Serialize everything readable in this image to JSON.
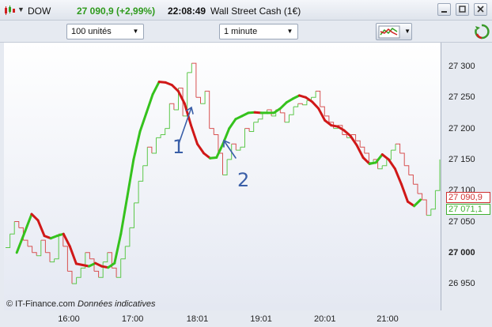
{
  "titlebar": {
    "symbol": "DOW",
    "price_change": "27 090,9 (+2,99%)",
    "time": "22:08:49",
    "instrument": "Wall Street Cash (1€)"
  },
  "toolbar": {
    "quantity": "100 unités",
    "interval": "1 minute"
  },
  "chart_data": {
    "type": "line",
    "title": "",
    "xlabel": "",
    "ylabel": "",
    "ylim": [
      26920,
      27330
    ],
    "y_ticks": [
      "27 300",
      "27 250",
      "27 200",
      "27 150",
      "27 100",
      "27 050",
      "27 000",
      "26 950"
    ],
    "x_ticks": [
      "16:00",
      "17:00",
      "18:01",
      "19:01",
      "20:01",
      "21:00"
    ],
    "price_labels": {
      "bid": "27 090,9",
      "ask": "27 071,1"
    },
    "up_color": "#35c21d",
    "down_color": "#d01818",
    "smooth_line": {
      "name": "",
      "points": [
        [
          "15:11",
          27000
        ],
        [
          "15:19",
          27035
        ],
        [
          "15:25",
          27062
        ],
        [
          "15:31",
          27052
        ],
        [
          "15:37",
          27027
        ],
        [
          "15:43",
          27023
        ],
        [
          "15:49",
          27027
        ],
        [
          "15:55",
          27030
        ],
        [
          "16:01",
          27010
        ],
        [
          "16:07",
          26982
        ],
        [
          "16:13",
          26980
        ],
        [
          "16:19",
          26978
        ],
        [
          "16:25",
          26983
        ],
        [
          "16:31",
          26978
        ],
        [
          "16:37",
          26976
        ],
        [
          "16:43",
          26983
        ],
        [
          "16:49",
          27030
        ],
        [
          "16:55",
          27090
        ],
        [
          "17:01",
          27150
        ],
        [
          "17:07",
          27195
        ],
        [
          "17:13",
          27225
        ],
        [
          "17:19",
          27255
        ],
        [
          "17:25",
          27275
        ],
        [
          "17:31",
          27274
        ],
        [
          "17:37",
          27270
        ],
        [
          "17:43",
          27260
        ],
        [
          "17:49",
          27240
        ],
        [
          "17:55",
          27205
        ],
        [
          "18:01",
          27175
        ],
        [
          "18:07",
          27160
        ],
        [
          "18:13",
          27152
        ],
        [
          "18:19",
          27153
        ],
        [
          "18:25",
          27175
        ],
        [
          "18:31",
          27200
        ],
        [
          "18:37",
          27215
        ],
        [
          "18:43",
          27220
        ],
        [
          "18:49",
          27225
        ],
        [
          "18:55",
          27226
        ],
        [
          "19:01",
          27225
        ],
        [
          "19:07",
          27225
        ],
        [
          "19:13",
          27225
        ],
        [
          "19:19",
          27232
        ],
        [
          "19:25",
          27242
        ],
        [
          "19:31",
          27248
        ],
        [
          "19:37",
          27253
        ],
        [
          "19:43",
          27250
        ],
        [
          "19:49",
          27243
        ],
        [
          "19:55",
          27232
        ],
        [
          "20:01",
          27213
        ],
        [
          "20:07",
          27205
        ],
        [
          "20:13",
          27203
        ],
        [
          "20:19",
          27197
        ],
        [
          "20:25",
          27188
        ],
        [
          "20:31",
          27173
        ],
        [
          "20:37",
          27153
        ],
        [
          "20:43",
          27143
        ],
        [
          "20:49",
          27145
        ],
        [
          "20:55",
          27158
        ],
        [
          "21:01",
          27150
        ],
        [
          "21:07",
          27135
        ],
        [
          "21:13",
          27110
        ],
        [
          "21:19",
          27082
        ],
        [
          "21:25",
          27075
        ],
        [
          "21:31",
          27085
        ]
      ]
    },
    "raw_series": [
      27008,
      27030,
      27050,
      27040,
      27020,
      27010,
      27000,
      26995,
      27020,
      27000,
      26985,
      26990,
      27030,
      27010,
      26970,
      26950,
      26960,
      26975,
      27000,
      26990,
      26970,
      26960,
      26985,
      27000,
      26975,
      26960,
      26990,
      27010,
      27040,
      27080,
      27115,
      27140,
      27170,
      27160,
      27185,
      27190,
      27200,
      27240,
      27230,
      27265,
      27220,
      27290,
      27305,
      27250,
      27240,
      27260,
      27200,
      27190,
      27160,
      27125,
      27150,
      27175,
      27165,
      27170,
      27200,
      27195,
      27210,
      27215,
      27225,
      27230,
      27220,
      27230,
      27225,
      27210,
      27222,
      27235,
      27240,
      27238,
      27245,
      27250,
      27260,
      27235,
      27220,
      27210,
      27200,
      27205,
      27190,
      27185,
      27190,
      27180,
      27170,
      27160,
      27145,
      27150,
      27135,
      27140,
      27150,
      27165,
      27175,
      27160,
      27140,
      27125,
      27110,
      27095,
      27085,
      27060,
      27070,
      27100,
      27150
    ],
    "annotations": [
      "1",
      "2"
    ]
  },
  "footer": {
    "source": "© IT-Finance.com",
    "note": "Données indicatives"
  }
}
